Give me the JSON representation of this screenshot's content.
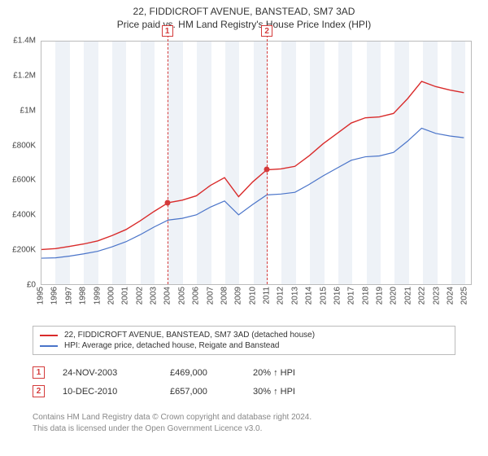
{
  "title": {
    "line1": "22, FIDDICROFT AVENUE, BANSTEAD, SM7 3AD",
    "line2": "Price paid vs. HM Land Registry's House Price Index (HPI)"
  },
  "chart": {
    "type": "line",
    "plot_bg": "#ffffff",
    "band_bg": "#eef2f7",
    "border_color": "#bbbbbb",
    "x_years": [
      1995,
      1996,
      1997,
      1998,
      1999,
      2000,
      2001,
      2002,
      2003,
      2004,
      2005,
      2006,
      2007,
      2008,
      2009,
      2010,
      2011,
      2012,
      2013,
      2014,
      2015,
      2016,
      2017,
      2018,
      2019,
      2020,
      2021,
      2022,
      2023,
      2024,
      2025
    ],
    "y_ticks": [
      0,
      200000,
      400000,
      600000,
      800000,
      1000000,
      1200000,
      1400000
    ],
    "y_labels": [
      "£0",
      "£200K",
      "£400K",
      "£600K",
      "£800K",
      "£1M",
      "£1.2M",
      "£1.4M"
    ],
    "ylim": [
      0,
      1400000
    ],
    "xlim": [
      1995,
      2025.5
    ],
    "tick_fontsize": 10,
    "series": [
      {
        "name": "22, FIDDICROFT AVENUE, BANSTEAD, SM7 3AD (detached house)",
        "color": "#d92b2b",
        "line_width": 1.4,
        "y": [
          200000,
          205000,
          218000,
          232000,
          250000,
          280000,
          315000,
          365000,
          420000,
          470000,
          485000,
          510000,
          570000,
          615000,
          505000,
          590000,
          660000,
          665000,
          680000,
          740000,
          810000,
          870000,
          930000,
          960000,
          965000,
          985000,
          1070000,
          1170000,
          1140000,
          1120000,
          1105000
        ]
      },
      {
        "name": "HPI: Average price, detached house, Reigate and Banstead",
        "color": "#4a74c9",
        "line_width": 1.2,
        "y": [
          150000,
          152000,
          162000,
          175000,
          190000,
          215000,
          245000,
          285000,
          330000,
          370000,
          380000,
          400000,
          445000,
          480000,
          400000,
          460000,
          515000,
          520000,
          530000,
          575000,
          625000,
          670000,
          715000,
          735000,
          740000,
          760000,
          825000,
          900000,
          870000,
          855000,
          845000
        ]
      }
    ],
    "sale_markers": [
      {
        "label": "1",
        "x_year": 2003.9,
        "y_value": 469000
      },
      {
        "label": "2",
        "x_year": 2010.95,
        "y_value": 657000
      }
    ]
  },
  "legend": {
    "items": [
      {
        "color": "#d92b2b",
        "label": "22, FIDDICROFT AVENUE, BANSTEAD, SM7 3AD (detached house)"
      },
      {
        "color": "#4a74c9",
        "label": "HPI: Average price, detached house, Reigate and Banstead"
      }
    ]
  },
  "sales": [
    {
      "num": "1",
      "date": "24-NOV-2003",
      "price": "£469,000",
      "pct": "20% ↑ HPI"
    },
    {
      "num": "2",
      "date": "10-DEC-2010",
      "price": "£657,000",
      "pct": "30% ↑ HPI"
    }
  ],
  "footer": {
    "line1": "Contains HM Land Registry data © Crown copyright and database right 2024.",
    "line2": "This data is licensed under the Open Government Licence v3.0."
  }
}
